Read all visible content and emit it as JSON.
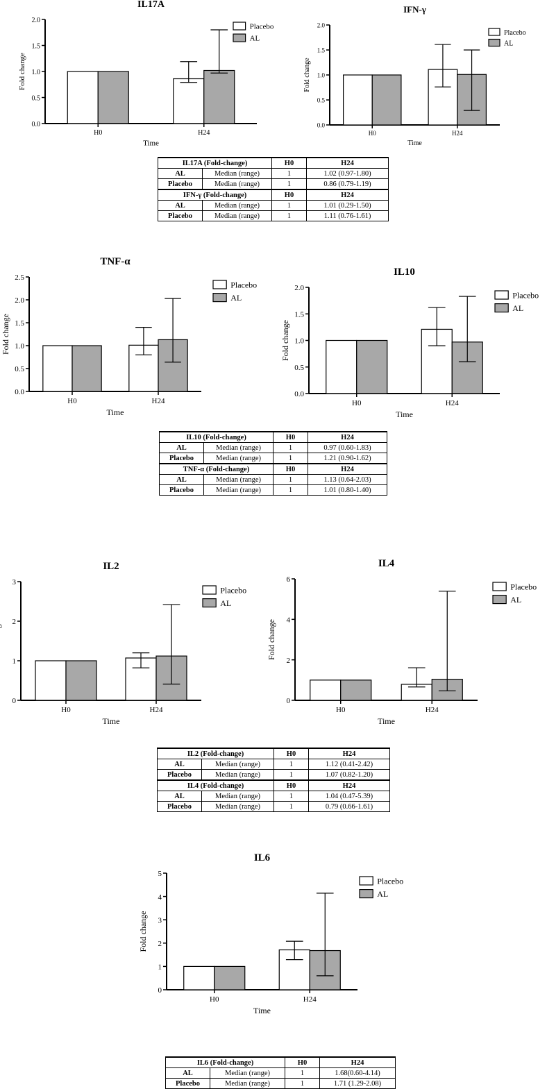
{
  "chart_data": [
    {
      "type": "bar",
      "title": "IL17A",
      "xlabel": "Time",
      "ylabel": "Fold change",
      "categories": [
        "H0",
        "H24"
      ],
      "ylim": [
        0,
        2.0
      ],
      "yticks": [
        "0.0",
        "0.5",
        "1.0",
        "1.5",
        "2.0"
      ],
      "ytick_values": [
        0,
        0.5,
        1.0,
        1.5,
        2.0
      ],
      "series": [
        {
          "name": "Placebo",
          "color": "#ffffff",
          "values": [
            1.0,
            0.86
          ],
          "err_low": [
            null,
            0.79
          ],
          "err_high": [
            null,
            1.19
          ]
        },
        {
          "name": "AL",
          "color": "#a8a8a8",
          "values": [
            1.0,
            1.02
          ],
          "err_low": [
            null,
            0.97
          ],
          "err_high": [
            null,
            1.8
          ]
        }
      ],
      "legend": "top-right",
      "grid": false
    },
    {
      "type": "bar",
      "title": "IFN-γ",
      "xlabel": "Time",
      "ylabel": "Fold change",
      "categories": [
        "H0",
        "H24"
      ],
      "ylim": [
        0,
        2.0
      ],
      "yticks": [
        "0.0",
        "0.5",
        "1.0",
        "1.5",
        "2.0"
      ],
      "ytick_values": [
        0,
        0.5,
        1.0,
        1.5,
        2.0
      ],
      "series": [
        {
          "name": "Placebo",
          "color": "#ffffff",
          "values": [
            1.0,
            1.11
          ],
          "err_low": [
            null,
            0.76
          ],
          "err_high": [
            null,
            1.61
          ]
        },
        {
          "name": "AL",
          "color": "#a8a8a8",
          "values": [
            1.0,
            1.01
          ],
          "err_low": [
            null,
            0.29
          ],
          "err_high": [
            null,
            1.5
          ]
        }
      ],
      "legend": "top-right",
      "grid": false
    },
    {
      "type": "bar",
      "title": "TNF-α",
      "xlabel": "Time",
      "ylabel": "Fold change",
      "categories": [
        "H0",
        "H24"
      ],
      "ylim": [
        0,
        2.5
      ],
      "yticks": [
        "0.0",
        "0.5",
        "1.0",
        "1.5",
        "2.0",
        "2.5"
      ],
      "ytick_values": [
        0,
        0.5,
        1.0,
        1.5,
        2.0,
        2.5
      ],
      "series": [
        {
          "name": "Placebo",
          "color": "#ffffff",
          "values": [
            1.0,
            1.01
          ],
          "err_low": [
            null,
            0.8
          ],
          "err_high": [
            null,
            1.4
          ]
        },
        {
          "name": "AL",
          "color": "#a8a8a8",
          "values": [
            1.0,
            1.13
          ],
          "err_low": [
            null,
            0.64
          ],
          "err_high": [
            null,
            2.03
          ]
        }
      ],
      "legend": "top-right",
      "grid": false
    },
    {
      "type": "bar",
      "title": "IL10",
      "xlabel": "Time",
      "ylabel": "Fold change",
      "categories": [
        "H0",
        "H24"
      ],
      "ylim": [
        0,
        2.0
      ],
      "yticks": [
        "0.0",
        "0.5",
        "1.0",
        "1.5",
        "2.0"
      ],
      "ytick_values": [
        0,
        0.5,
        1.0,
        1.5,
        2.0
      ],
      "series": [
        {
          "name": "Placebo",
          "color": "#ffffff",
          "values": [
            1.0,
            1.21
          ],
          "err_low": [
            null,
            0.9
          ],
          "err_high": [
            null,
            1.62
          ]
        },
        {
          "name": "AL",
          "color": "#a8a8a8",
          "values": [
            1.0,
            0.97
          ],
          "err_low": [
            null,
            0.6
          ],
          "err_high": [
            null,
            1.83
          ]
        }
      ],
      "legend": "top-right",
      "grid": false
    },
    {
      "type": "bar",
      "title": "IL2",
      "xlabel": "Time",
      "ylabel": "Fold change",
      "categories": [
        "H0",
        "H24"
      ],
      "ylim": [
        0,
        3
      ],
      "yticks": [
        "0",
        "1",
        "2",
        "3"
      ],
      "ytick_values": [
        0,
        1,
        2,
        3
      ],
      "series": [
        {
          "name": "Placebo",
          "color": "#ffffff",
          "values": [
            1.0,
            1.07
          ],
          "err_low": [
            null,
            0.82
          ],
          "err_high": [
            null,
            1.2
          ]
        },
        {
          "name": "AL",
          "color": "#a8a8a8",
          "values": [
            1.0,
            1.12
          ],
          "err_low": [
            null,
            0.41
          ],
          "err_high": [
            null,
            2.42
          ]
        }
      ],
      "legend": "top-right",
      "grid": false
    },
    {
      "type": "bar",
      "title": "IL4",
      "xlabel": "Time",
      "ylabel": "Fold change",
      "categories": [
        "H0",
        "H24"
      ],
      "ylim": [
        0,
        6
      ],
      "yticks": [
        "0",
        "2",
        "4",
        "6"
      ],
      "ytick_values": [
        0,
        2,
        4,
        6
      ],
      "series": [
        {
          "name": "Placebo",
          "color": "#ffffff",
          "values": [
            1.0,
            0.79
          ],
          "err_low": [
            null,
            0.66
          ],
          "err_high": [
            null,
            1.61
          ]
        },
        {
          "name": "AL",
          "color": "#a8a8a8",
          "values": [
            1.0,
            1.04
          ],
          "err_low": [
            null,
            0.47
          ],
          "err_high": [
            null,
            5.39
          ]
        }
      ],
      "legend": "top-right",
      "grid": false
    },
    {
      "type": "bar",
      "title": "IL6",
      "xlabel": "Time",
      "ylabel": "Fold change",
      "categories": [
        "H0",
        "H24"
      ],
      "ylim": [
        0,
        5
      ],
      "yticks": [
        "0",
        "1",
        "2",
        "3",
        "4",
        "5"
      ],
      "ytick_values": [
        0,
        1,
        2,
        3,
        4,
        5
      ],
      "series": [
        {
          "name": "Placebo",
          "color": "#ffffff",
          "values": [
            1.0,
            1.71
          ],
          "err_low": [
            null,
            1.29
          ],
          "err_high": [
            null,
            2.08
          ]
        },
        {
          "name": "AL",
          "color": "#a8a8a8",
          "values": [
            1.0,
            1.68
          ],
          "err_low": [
            null,
            0.6
          ],
          "err_high": [
            null,
            4.14
          ]
        }
      ],
      "legend": "top-right",
      "grid": false
    }
  ],
  "tables": [
    {
      "sections": [
        {
          "header": [
            "IL17A (Fold-change)",
            "H0",
            "H24"
          ],
          "rows": [
            [
              "AL",
              "Median (range)",
              "1",
              "1.02 (0.97-1.80)"
            ],
            [
              "Placebo",
              "Median (range)",
              "1",
              "0.86 (0.79-1.19)"
            ]
          ]
        },
        {
          "header": [
            "IFN-γ (Fold-change)",
            "H0",
            "H24"
          ],
          "rows": [
            [
              "AL",
              "Median (range)",
              "1",
              "1.01 (0.29-1.50)"
            ],
            [
              "Placebo",
              "Median (range)",
              "1",
              "1.11 (0.76-1.61)"
            ]
          ]
        }
      ]
    },
    {
      "sections": [
        {
          "header": [
            "IL10 (Fold-change)",
            "H0",
            "H24"
          ],
          "rows": [
            [
              "AL",
              "Median (range)",
              "1",
              "0.97 (0.60-1.83)"
            ],
            [
              "Placebo",
              "Median (range)",
              "1",
              "1.21 (0.90-1.62)"
            ]
          ]
        },
        {
          "header": [
            "TNF-α (Fold-change)",
            "H0",
            "H24"
          ],
          "rows": [
            [
              "AL",
              "Median (range)",
              "1",
              "1.13 (0.64-2.03)"
            ],
            [
              "Placebo",
              "Median (range)",
              "1",
              "1.01 (0.80-1.40)"
            ]
          ]
        }
      ]
    },
    {
      "sections": [
        {
          "header": [
            "IL2 (Fold-change)",
            "H0",
            "H24"
          ],
          "rows": [
            [
              "AL",
              "Median (range)",
              "1",
              "1.12 (0.41-2.42)"
            ],
            [
              "Placebo",
              "Median (range)",
              "1",
              "1.07 (0.82-1.20)"
            ]
          ]
        },
        {
          "header": [
            "IL4 (Fold-change)",
            "H0",
            "H24"
          ],
          "rows": [
            [
              "AL",
              "Median (range)",
              "1",
              "1.04 (0.47-5.39)"
            ],
            [
              "Placebo",
              "Median (range)",
              "1",
              "0.79 (0.66-1.61)"
            ]
          ]
        }
      ]
    },
    {
      "sections": [
        {
          "header": [
            "IL6 (Fold-change)",
            "H0",
            "H24"
          ],
          "rows": [
            [
              "AL",
              "Median (range)",
              "1",
              "1.68(0.60-4.14)"
            ],
            [
              "Placebo",
              "Median (range)",
              "1",
              "1.71 (1.29-2.08)"
            ]
          ]
        }
      ]
    }
  ]
}
